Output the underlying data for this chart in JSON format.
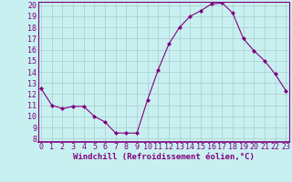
{
  "x": [
    0,
    1,
    2,
    3,
    4,
    5,
    6,
    7,
    8,
    9,
    10,
    11,
    12,
    13,
    14,
    15,
    16,
    17,
    18,
    19,
    20,
    21,
    22,
    23
  ],
  "y": [
    12.5,
    11.0,
    10.7,
    10.9,
    10.9,
    10.0,
    9.5,
    8.5,
    8.5,
    8.5,
    11.5,
    14.2,
    16.5,
    18.0,
    19.0,
    19.5,
    20.1,
    20.2,
    19.3,
    17.0,
    15.9,
    15.0,
    13.8,
    12.3
  ],
  "line_color": "#800080",
  "marker": "D",
  "marker_size": 2.0,
  "bg_color": "#c8f0f0",
  "grid_color": "#aacccc",
  "xlabel": "Windchill (Refroidissement éolien,°C)",
  "ylim_min": 8,
  "ylim_max": 20,
  "xlim_min": 0,
  "xlim_max": 23,
  "yticks": [
    8,
    9,
    10,
    11,
    12,
    13,
    14,
    15,
    16,
    17,
    18,
    19,
    20
  ],
  "xticks": [
    0,
    1,
    2,
    3,
    4,
    5,
    6,
    7,
    8,
    9,
    10,
    11,
    12,
    13,
    14,
    15,
    16,
    17,
    18,
    19,
    20,
    21,
    22,
    23
  ],
  "xlabel_fontsize": 6.5,
  "tick_fontsize": 6.0,
  "label_color": "#800080",
  "spine_color": "#800080",
  "linewidth": 0.8
}
